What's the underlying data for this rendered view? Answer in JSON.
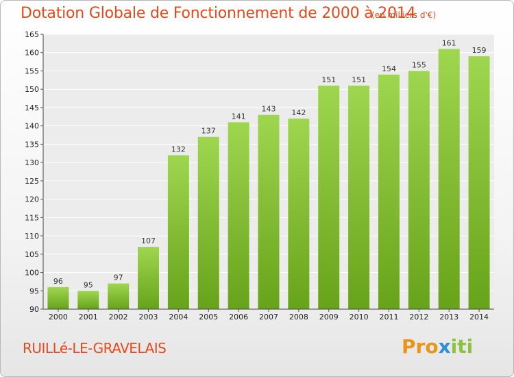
{
  "title": "Dotation Globale de Fonctionnement de 2000 à 2014",
  "subtitle": "(en milliers d'€)",
  "commune": "RUILLé-LE-GRAVELAIS",
  "logo": {
    "part1": "Pro",
    "part2": "x",
    "part3": "iti"
  },
  "colors": {
    "bar_top": "#9fd64f",
    "bar_bottom": "#67a31a",
    "text_accent": "#e5491c"
  },
  "chart_data": {
    "type": "bar",
    "categories": [
      "2000",
      "2001",
      "2002",
      "2003",
      "2004",
      "2005",
      "2006",
      "2007",
      "2008",
      "2009",
      "2010",
      "2011",
      "2012",
      "2013",
      "2014"
    ],
    "values": [
      96,
      95,
      97,
      107,
      132,
      137,
      141,
      143,
      142,
      151,
      151,
      154,
      155,
      161,
      159
    ],
    "ylim": [
      90,
      165
    ],
    "yticks": [
      90,
      95,
      100,
      105,
      110,
      115,
      120,
      125,
      130,
      135,
      140,
      145,
      150,
      155,
      160,
      165
    ],
    "grid": true,
    "title": "Dotation Globale de Fonctionnement de 2000 à 2014",
    "xlabel": "",
    "ylabel": ""
  }
}
